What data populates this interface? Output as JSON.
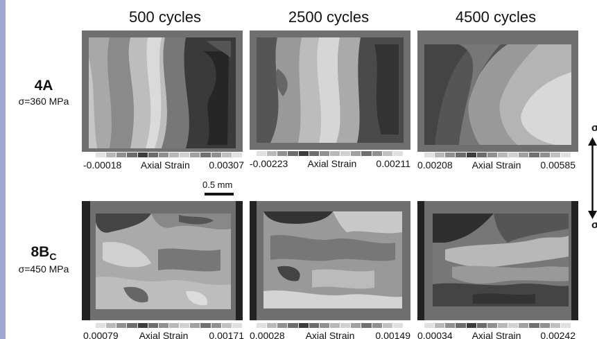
{
  "columns": [
    "500 cycles",
    "2500 cycles",
    "4500 cycles"
  ],
  "rows": [
    {
      "specimen": "4A",
      "stress": "σ=360 MPa",
      "scales": [
        {
          "min": "-0.00018",
          "label": "Axial Strain",
          "max": "0.00307"
        },
        {
          "min": "-0.00223",
          "label": "Axial Strain",
          "max": "0.00211"
        },
        {
          "min": "0.00208",
          "label": "Axial Strain",
          "max": "0.00585"
        }
      ]
    },
    {
      "specimen": "8B",
      "specimen_sub": "C",
      "stress": "σ=450 MPa",
      "scales": [
        {
          "min": "0.00079",
          "label": "Axial Strain",
          "max": "0.00171"
        },
        {
          "min": "0.00028",
          "label": "Axial Strain",
          "max": "0.00149"
        },
        {
          "min": "0.00034",
          "label": "Axial Strain",
          "max": "0.00242"
        }
      ]
    }
  ],
  "scale_bar": "0.5 mm",
  "load_symbol": "σ",
  "colors": {
    "dark": "#333333",
    "mid": "#888888",
    "light": "#cccccc"
  }
}
